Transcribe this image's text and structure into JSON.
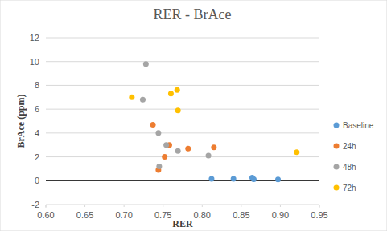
{
  "chart_data": {
    "type": "scatter",
    "title": "RER - BrAce",
    "x_label": "RER",
    "y_label": "BrAce (ppm)",
    "xlim": [
      0.6,
      0.95
    ],
    "xticks": [
      {
        "value": 0.6,
        "label": "0.60"
      },
      0.65,
      {
        "value": 0.7,
        "label": "0.70"
      },
      0.75,
      {
        "value": 0.8,
        "label": "0.80"
      },
      0.85,
      {
        "value": 0.9,
        "label": "0.90"
      },
      0.95
    ],
    "ylim": [
      -2,
      12
    ],
    "yticks": [
      -2,
      0,
      2,
      4,
      6,
      8,
      10,
      12
    ],
    "grid": true,
    "legend": "right",
    "marker": "circle",
    "series": [
      {
        "name": "Baseline",
        "color": "#5b9bd5",
        "x": [
          0.812,
          0.84,
          0.864,
          0.866,
          0.897
        ],
        "values": [
          0.15,
          0.15,
          0.25,
          0.12,
          0.1
        ]
      },
      {
        "name": "24h",
        "color": "#ed7d31",
        "x": [
          0.737,
          0.744,
          0.752,
          0.758,
          0.782,
          0.815
        ],
        "values": [
          4.7,
          0.9,
          2.0,
          3.0,
          2.7,
          2.8
        ]
      },
      {
        "name": "48h",
        "color": "#a5a5a5",
        "x": [
          0.728,
          0.724,
          0.744,
          0.745,
          0.754,
          0.769,
          0.808
        ],
        "values": [
          9.8,
          6.8,
          4.0,
          1.2,
          3.0,
          2.5,
          2.1
        ]
      },
      {
        "name": "72h",
        "color": "#ffc000",
        "x": [
          0.71,
          0.76,
          0.768,
          0.769,
          0.921
        ],
        "values": [
          7.0,
          7.3,
          7.6,
          5.9,
          2.4
        ]
      }
    ]
  }
}
